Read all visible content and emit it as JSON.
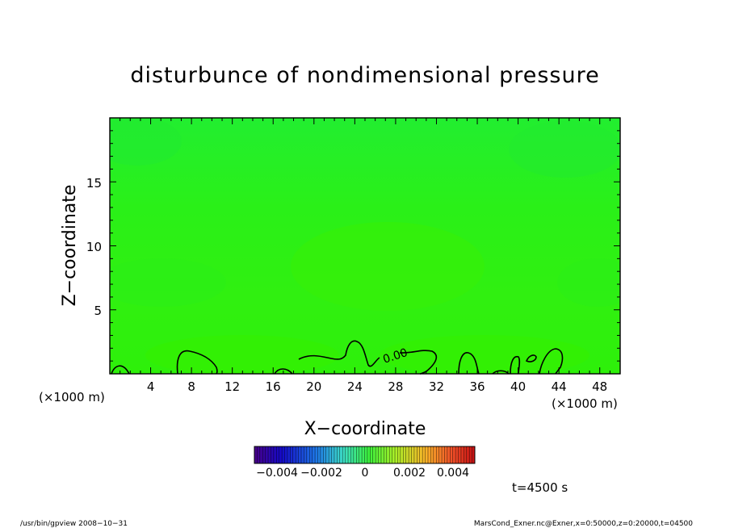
{
  "chart_data": {
    "type": "heatmap",
    "title": "disturbunce of nondimensional pressure",
    "xlabel": "X-coordinate",
    "ylabel": "Z-coordinate",
    "x_unit_left": "(×1000 m)",
    "x_unit_right": "(×1000 m)",
    "xlim": [
      0,
      50
    ],
    "ylim": [
      0,
      20
    ],
    "x_ticks": [
      "4",
      "8",
      "12",
      "16",
      "20",
      "24",
      "28",
      "32",
      "36",
      "40",
      "44",
      "48"
    ],
    "y_ticks": [
      "5",
      "10",
      "15"
    ],
    "contour_label": "0.00",
    "colorbar": {
      "range": [
        -0.005,
        0.005
      ],
      "tick_labels": [
        "-0.004",
        "-0.002",
        "0",
        "0.002",
        "0.004"
      ]
    },
    "time_label": "t=4500 s",
    "field_colors": {
      "base": "#2cf000",
      "upper": "#28ec18",
      "lower": "#30f008"
    }
  },
  "footer": {
    "left": "/usr/bin/gpview   2008-10-31",
    "right": "MarsCond_Exner.nc@Exner,x=0:50000,z=0:20000,t=04500"
  }
}
